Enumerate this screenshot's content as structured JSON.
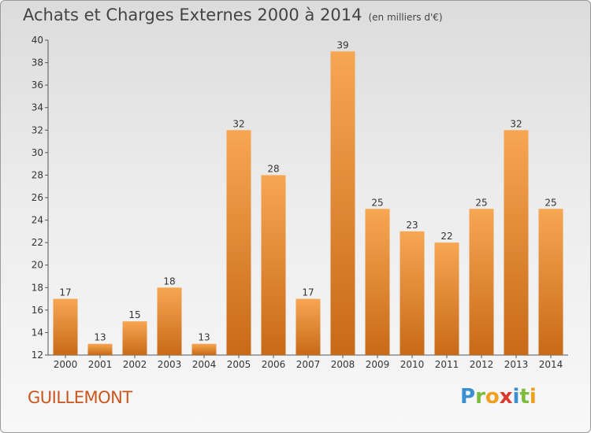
{
  "header": {
    "title": "Achats et Charges Externes 2000 à 2014",
    "subtitle": "(en milliers d'€)"
  },
  "footer": {
    "commune": "GUILLEMONT",
    "logo_letters": [
      "P",
      "r",
      "o",
      "x",
      "i",
      "t",
      "i"
    ]
  },
  "colors": {
    "bar_top": "#f7a652",
    "bar_bottom": "#c86a18",
    "commune_text": "#c8571e"
  },
  "chart_data": {
    "type": "bar",
    "title": "Achats et Charges Externes 2000 à 2014",
    "subtitle": "(en milliers d'€)",
    "categories": [
      "2000",
      "2001",
      "2002",
      "2003",
      "2004",
      "2005",
      "2006",
      "2007",
      "2008",
      "2009",
      "2010",
      "2011",
      "2012",
      "2013",
      "2014"
    ],
    "values": [
      17,
      13,
      15,
      18,
      13,
      32,
      28,
      17,
      39,
      25,
      23,
      22,
      25,
      32,
      25
    ],
    "ylim": [
      12,
      40
    ],
    "yticks": [
      12,
      14,
      16,
      18,
      20,
      22,
      24,
      26,
      28,
      30,
      32,
      34,
      36,
      38,
      40
    ],
    "grid": false,
    "legend": "none"
  }
}
